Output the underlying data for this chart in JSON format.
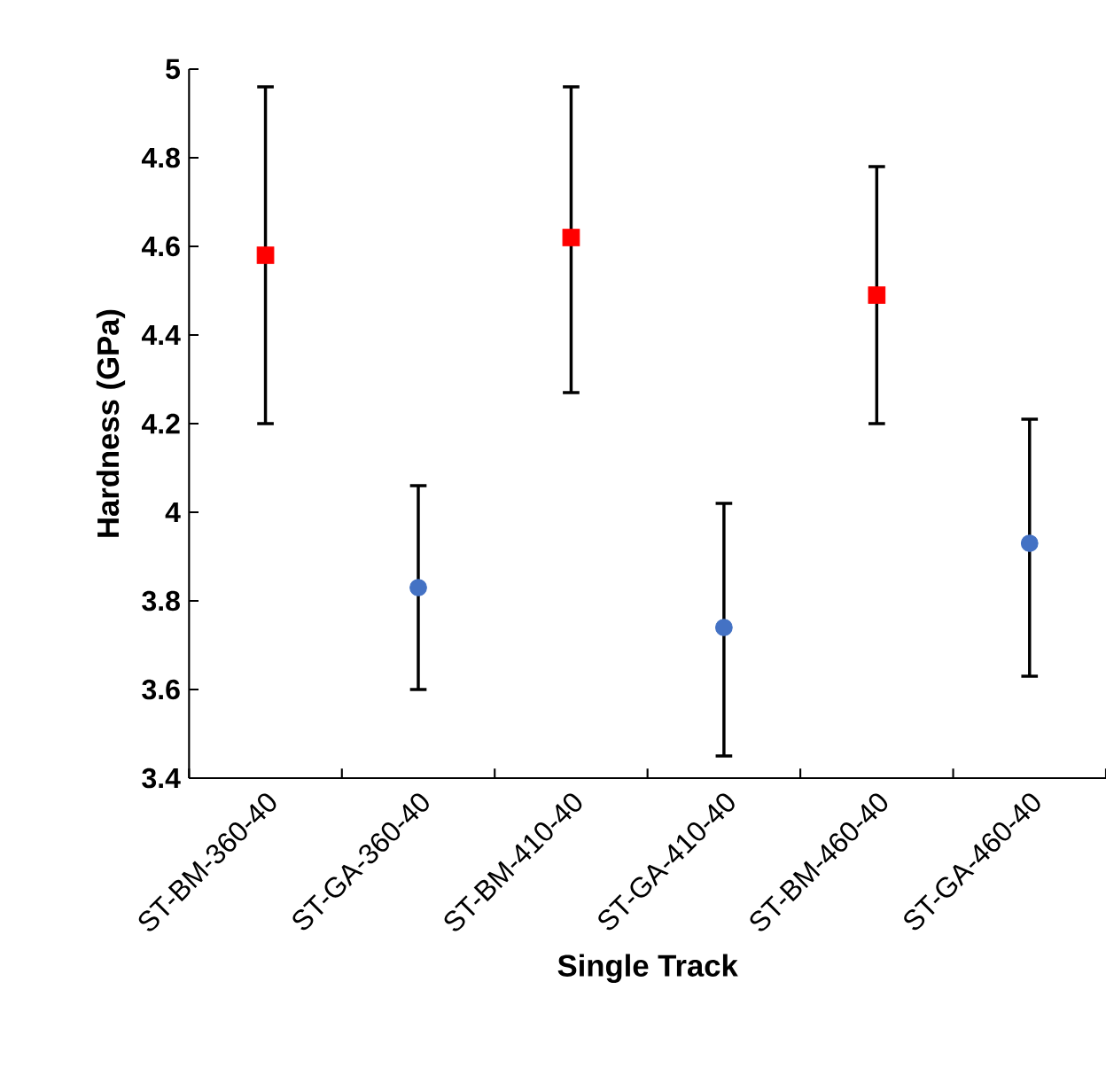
{
  "chart_data": {
    "type": "scatter",
    "xlabel": "Single Track",
    "ylabel": "Hardness (GPa)",
    "categories": [
      "ST-BM-360-40",
      "ST-GA-360-40",
      "ST-BM-410-40",
      "ST-GA-410-40",
      "ST-BM-460-40",
      "ST-GA-460-40"
    ],
    "series": [
      {
        "color": "#ff0000",
        "marker": "square",
        "values": [
          4.58,
          null,
          4.62,
          null,
          4.49,
          null
        ],
        "errors": [
          [
            4.2,
            4.96
          ],
          null,
          [
            4.27,
            4.96
          ],
          null,
          [
            4.2,
            4.78
          ],
          null
        ]
      },
      {
        "color": "#4472c4",
        "marker": "circle",
        "values": [
          null,
          3.83,
          null,
          3.74,
          null,
          3.93
        ],
        "errors": [
          null,
          [
            3.6,
            4.06
          ],
          null,
          [
            3.45,
            4.02
          ],
          null,
          [
            3.63,
            4.21
          ]
        ]
      }
    ],
    "ylim": [
      3.4,
      5
    ],
    "yticks": [
      3.4,
      3.6,
      3.8,
      4,
      4.2,
      4.4,
      4.6,
      4.8,
      5
    ],
    "grid": false
  }
}
